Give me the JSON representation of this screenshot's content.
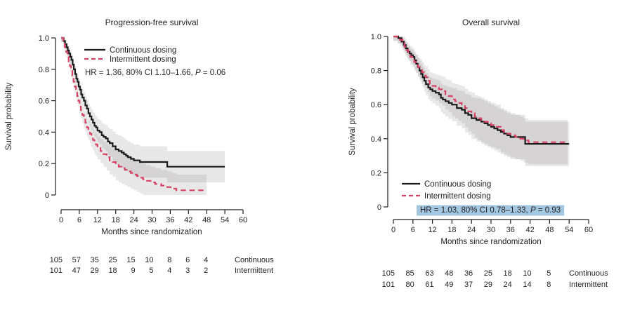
{
  "figure_colors": {
    "continuous": "#1a1a1a",
    "intermittent": "#d64265",
    "ci_band": "rgba(35,31,32,0.10)",
    "highlight": "#a3c7e0",
    "axis": "#231f20"
  },
  "chart_data": [
    {
      "type": "line",
      "title": "Progression-free survival",
      "xlabel": "Months since randomization",
      "ylabel": "Survival probability",
      "xlim": [
        0,
        60
      ],
      "ylim": [
        0,
        1
      ],
      "grid": false,
      "legend_position": "upper-right-inside",
      "x_ticks": [
        0,
        6,
        12,
        18,
        24,
        30,
        36,
        42,
        48,
        54,
        60
      ],
      "y_ticks": [
        {
          "v": 1.0,
          "label": "1.0"
        },
        {
          "v": 0.8,
          "label": "0.8"
        },
        {
          "v": 0.6,
          "label": "0.6"
        },
        {
          "v": 0.4,
          "label": "0.4"
        },
        {
          "v": 0.2,
          "label": "0.2"
        },
        {
          "v": 0.0,
          "label": "0"
        }
      ],
      "band_color": "rgba(35,31,32,0.10)",
      "ci": {
        "a": 0.025,
        "b": 0.004,
        "max": 0.1
      },
      "legend": [
        {
          "name": "Continuous dosing",
          "style": "solid",
          "color": "#1a1a1a"
        },
        {
          "name": "Intermittent dosing",
          "style": "dashed",
          "color": "#d64265"
        }
      ],
      "annotation": {
        "pre": "HR = 1.36, 80% CI 1.10–1.66, ",
        "p_label": "P",
        "post": " = 0.06",
        "highlight": false,
        "highlight_color": null
      },
      "series": [
        {
          "name": "Continuous dosing",
          "style": "solid",
          "color": "#1a1a1a",
          "points": [
            [
              0,
              1
            ],
            [
              0.8,
              0.98
            ],
            [
              1.3,
              0.96
            ],
            [
              1.8,
              0.94
            ],
            [
              2.2,
              0.92
            ],
            [
              2.6,
              0.9
            ],
            [
              3,
              0.88
            ],
            [
              3.4,
              0.86
            ],
            [
              3.8,
              0.83
            ],
            [
              4.2,
              0.8
            ],
            [
              4.6,
              0.77
            ],
            [
              5,
              0.74
            ],
            [
              5.4,
              0.72
            ],
            [
              5.8,
              0.69
            ],
            [
              6.2,
              0.67
            ],
            [
              6.6,
              0.64
            ],
            [
              7,
              0.62
            ],
            [
              7.5,
              0.6
            ],
            [
              8,
              0.57
            ],
            [
              8.5,
              0.55
            ],
            [
              9,
              0.52
            ],
            [
              9.5,
              0.5
            ],
            [
              10,
              0.48
            ],
            [
              10.5,
              0.46
            ],
            [
              11,
              0.44
            ],
            [
              11.5,
              0.43
            ],
            [
              12,
              0.41
            ],
            [
              12.7,
              0.4
            ],
            [
              13.4,
              0.38
            ],
            [
              14,
              0.37
            ],
            [
              14.7,
              0.36
            ],
            [
              15.4,
              0.34
            ],
            [
              16,
              0.33
            ],
            [
              17,
              0.31
            ],
            [
              18,
              0.29
            ],
            [
              19,
              0.28
            ],
            [
              20,
              0.27
            ],
            [
              20.7,
              0.26
            ],
            [
              21.4,
              0.25
            ],
            [
              22,
              0.24
            ],
            [
              23,
              0.23
            ],
            [
              24,
              0.22
            ],
            [
              26,
              0.21
            ],
            [
              35,
              0.18
            ],
            [
              54,
              0.18
            ]
          ]
        },
        {
          "name": "Intermittent dosing",
          "style": "dashed",
          "color": "#d64265",
          "points": [
            [
              0,
              1
            ],
            [
              0.7,
              0.97
            ],
            [
              1.2,
              0.94
            ],
            [
              1.7,
              0.91
            ],
            [
              2.1,
              0.88
            ],
            [
              2.5,
              0.85
            ],
            [
              2.9,
              0.82
            ],
            [
              3.3,
              0.79
            ],
            [
              3.7,
              0.76
            ],
            [
              4.1,
              0.72
            ],
            [
              4.5,
              0.69
            ],
            [
              4.9,
              0.66
            ],
            [
              5.3,
              0.63
            ],
            [
              5.7,
              0.6
            ],
            [
              6.1,
              0.57
            ],
            [
              6.5,
              0.54
            ],
            [
              7,
              0.51
            ],
            [
              7.5,
              0.48
            ],
            [
              8,
              0.46
            ],
            [
              8.5,
              0.43
            ],
            [
              9,
              0.41
            ],
            [
              9.5,
              0.39
            ],
            [
              10,
              0.37
            ],
            [
              10.5,
              0.35
            ],
            [
              11,
              0.33
            ],
            [
              11.5,
              0.32
            ],
            [
              12,
              0.3
            ],
            [
              13,
              0.28
            ],
            [
              14,
              0.26
            ],
            [
              15,
              0.24
            ],
            [
              16,
              0.22
            ],
            [
              17,
              0.21
            ],
            [
              18,
              0.19
            ],
            [
              19,
              0.18
            ],
            [
              20,
              0.17
            ],
            [
              21,
              0.16
            ],
            [
              22,
              0.15
            ],
            [
              23,
              0.14
            ],
            [
              24,
              0.13
            ],
            [
              25,
              0.12
            ],
            [
              26,
              0.11
            ],
            [
              27,
              0.1
            ],
            [
              28,
              0.09
            ],
            [
              29.5,
              0.08
            ],
            [
              31,
              0.07
            ],
            [
              33,
              0.06
            ],
            [
              35,
              0.05
            ],
            [
              36.5,
              0.04
            ],
            [
              38,
              0.03
            ],
            [
              48,
              0.03
            ]
          ]
        }
      ],
      "risk_table": {
        "times": [
          0,
          6,
          12,
          18,
          24,
          30,
          36,
          42,
          48
        ],
        "rows": [
          {
            "label": "Continuous",
            "counts": [
              105,
              57,
              35,
              25,
              15,
              10,
              8,
              6,
              4
            ]
          },
          {
            "label": "Intermittent",
            "counts": [
              101,
              47,
              29,
              18,
              9,
              5,
              4,
              3,
              2
            ]
          }
        ]
      }
    },
    {
      "type": "line",
      "title": "Overall survival",
      "xlabel": "Months since randomization",
      "ylabel": "Survival probability",
      "xlim": [
        0,
        60
      ],
      "ylim": [
        0,
        1
      ],
      "grid": false,
      "legend_position": "lower-left-inside",
      "x_ticks": [
        0,
        6,
        12,
        18,
        24,
        30,
        36,
        42,
        48,
        54,
        60
      ],
      "y_ticks": [
        {
          "v": 1.0,
          "label": "1.0"
        },
        {
          "v": 0.8,
          "label": "0.8"
        },
        {
          "v": 0.6,
          "label": "0.6"
        },
        {
          "v": 0.4,
          "label": "0.4"
        },
        {
          "v": 0.2,
          "label": "0.2"
        },
        {
          "v": 0.0,
          "label": "0"
        }
      ],
      "band_color": "rgba(35,31,32,0.10)",
      "ci": {
        "a": 0.025,
        "b": 0.004,
        "max": 0.13
      },
      "legend": [
        {
          "name": "Continuous dosing",
          "style": "solid",
          "color": "#1a1a1a"
        },
        {
          "name": "Intermittent dosing",
          "style": "dashed",
          "color": "#d64265"
        }
      ],
      "annotation": {
        "pre": "HR = 1.03, 80% CI 0.78–1.33, ",
        "p_label": "P",
        "post": " = 0.93",
        "highlight": true,
        "highlight_color": "#a3c7e0"
      },
      "series": [
        {
          "name": "Continuous dosing",
          "style": "solid",
          "color": "#1a1a1a",
          "points": [
            [
              0,
              1
            ],
            [
              1.5,
              0.99
            ],
            [
              2.5,
              0.97
            ],
            [
              3.2,
              0.95
            ],
            [
              3.8,
              0.93
            ],
            [
              4.4,
              0.91
            ],
            [
              5,
              0.9
            ],
            [
              5.5,
              0.89
            ],
            [
              6,
              0.88
            ],
            [
              6.5,
              0.86
            ],
            [
              7,
              0.84
            ],
            [
              7.5,
              0.82
            ],
            [
              8,
              0.8
            ],
            [
              8.5,
              0.78
            ],
            [
              9,
              0.76
            ],
            [
              9.5,
              0.74
            ],
            [
              10,
              0.72
            ],
            [
              10.7,
              0.7
            ],
            [
              11.3,
              0.69
            ],
            [
              12,
              0.68
            ],
            [
              13,
              0.67
            ],
            [
              14,
              0.66
            ],
            [
              14.6,
              0.64
            ],
            [
              15.2,
              0.63
            ],
            [
              16,
              0.62
            ],
            [
              17,
              0.61
            ],
            [
              18,
              0.6
            ],
            [
              19.5,
              0.58
            ],
            [
              21,
              0.57
            ],
            [
              22,
              0.55
            ],
            [
              23,
              0.54
            ],
            [
              24,
              0.52
            ],
            [
              25.5,
              0.51
            ],
            [
              27,
              0.5
            ],
            [
              28,
              0.49
            ],
            [
              29,
              0.48
            ],
            [
              30,
              0.47
            ],
            [
              31,
              0.46
            ],
            [
              32,
              0.45
            ],
            [
              33,
              0.44
            ],
            [
              34,
              0.43
            ],
            [
              35,
              0.42
            ],
            [
              36,
              0.41
            ],
            [
              40.5,
              0.37
            ],
            [
              54,
              0.37
            ]
          ]
        },
        {
          "name": "Intermittent dosing",
          "style": "dashed",
          "color": "#d64265",
          "points": [
            [
              0,
              1
            ],
            [
              1.2,
              0.99
            ],
            [
              2,
              0.98
            ],
            [
              2.8,
              0.96
            ],
            [
              3.4,
              0.94
            ],
            [
              4,
              0.92
            ],
            [
              4.6,
              0.9
            ],
            [
              5.2,
              0.88
            ],
            [
              5.8,
              0.87
            ],
            [
              6.4,
              0.85
            ],
            [
              7,
              0.84
            ],
            [
              7.6,
              0.82
            ],
            [
              8.2,
              0.81
            ],
            [
              8.8,
              0.79
            ],
            [
              9.4,
              0.77
            ],
            [
              10,
              0.76
            ],
            [
              10.6,
              0.74
            ],
            [
              11.2,
              0.72
            ],
            [
              12,
              0.71
            ],
            [
              13,
              0.7
            ],
            [
              14,
              0.69
            ],
            [
              15,
              0.68
            ],
            [
              16,
              0.66
            ],
            [
              17,
              0.65
            ],
            [
              18,
              0.63
            ],
            [
              19,
              0.62
            ],
            [
              20,
              0.61
            ],
            [
              21,
              0.6
            ],
            [
              22,
              0.58
            ],
            [
              23,
              0.56
            ],
            [
              24,
              0.55
            ],
            [
              25,
              0.53
            ],
            [
              26,
              0.52
            ],
            [
              27,
              0.51
            ],
            [
              28,
              0.5
            ],
            [
              29,
              0.49
            ],
            [
              30,
              0.48
            ],
            [
              31.5,
              0.47
            ],
            [
              33,
              0.45
            ],
            [
              34,
              0.44
            ],
            [
              35,
              0.43
            ],
            [
              36,
              0.42
            ],
            [
              37.5,
              0.41
            ],
            [
              39,
              0.4
            ],
            [
              40,
              0.39
            ],
            [
              41.5,
              0.38
            ],
            [
              53.5,
              0.38
            ]
          ]
        }
      ],
      "risk_table": {
        "times": [
          0,
          6,
          12,
          18,
          24,
          30,
          36,
          42,
          48
        ],
        "rows": [
          {
            "label": "Continuous",
            "counts": [
              105,
              85,
              63,
              48,
              36,
              25,
              18,
              10,
              5
            ]
          },
          {
            "label": "Intermittent",
            "counts": [
              101,
              80,
              61,
              49,
              37,
              29,
              24,
              14,
              8
            ]
          }
        ]
      }
    }
  ]
}
